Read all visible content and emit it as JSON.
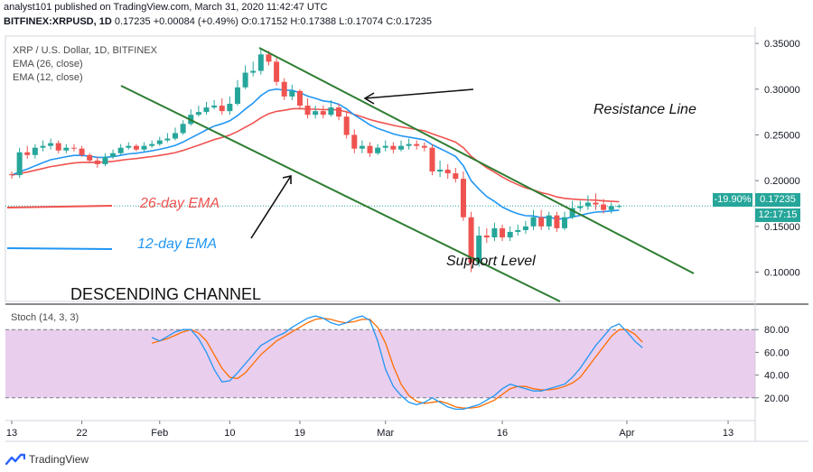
{
  "header": {
    "published": "analyst101 published on TradingView.com, March 31, 2020 11:42:47 UTC",
    "symbol": "BITFINEX:XRPUSD, 1D",
    "last": "0.17235",
    "change": "+0.00084 (+0.49%)",
    "o_label": "O:",
    "o": "0.17152",
    "h_label": "H:",
    "h": "0.17388",
    "l_label": "L:",
    "l": "0.17074",
    "c_label": "C:",
    "c": "0.17235"
  },
  "legend": {
    "title": "XRP / U.S. Dollar, 1D, BITFINEX",
    "ema26": "EMA (26, close)",
    "ema12": "EMA (12, close)"
  },
  "annotations": {
    "resistance": "Resistance Line",
    "support": "Support Level",
    "ema26": "26-day EMA",
    "ema12": "12-day EMA",
    "channel": "DESCENDING CHANNEL"
  },
  "price_axis": {
    "labels": [
      "0.35000",
      "0.30000",
      "0.25000",
      "0.20000",
      "0.15000",
      "0.10000"
    ],
    "current_price": "0.17235",
    "pct": "-19.90%",
    "countdown": "12:17:15"
  },
  "stoch_axis": {
    "title": "Stoch (14, 3, 3)",
    "labels": [
      "80.00",
      "60.00",
      "40.00",
      "20.00"
    ]
  },
  "time_axis": [
    "13",
    "22",
    "Feb",
    "10",
    "19",
    "Mar",
    "16",
    "Apr",
    "13"
  ],
  "footer": {
    "brand": "TradingView"
  },
  "colors": {
    "up": "#26a69a",
    "down": "#ef5350",
    "ema26": "#ef5350",
    "ema12": "#2196f3",
    "trendline": "#2e7d32",
    "stoch_k": "#2196f3",
    "stoch_d": "#ff6d00",
    "stoch_band": "#e1bee7",
    "price_tag": "#26a69a"
  },
  "chart_data": {
    "type": "candlestick",
    "title": "XRP / U.S. Dollar, 1D, BITFINEX",
    "dates": [
      "2020-01-13",
      "2020-01-14",
      "2020-01-15",
      "2020-01-16",
      "2020-01-17",
      "2020-01-18",
      "2020-01-19",
      "2020-01-20",
      "2020-01-21",
      "2020-01-22",
      "2020-01-23",
      "2020-01-24",
      "2020-01-25",
      "2020-01-26",
      "2020-01-27",
      "2020-01-28",
      "2020-01-29",
      "2020-01-30",
      "2020-01-31",
      "2020-02-01",
      "2020-02-02",
      "2020-02-03",
      "2020-02-04",
      "2020-02-05",
      "2020-02-06",
      "2020-02-07",
      "2020-02-08",
      "2020-02-09",
      "2020-02-10",
      "2020-02-11",
      "2020-02-12",
      "2020-02-13",
      "2020-02-14",
      "2020-02-15",
      "2020-02-16",
      "2020-02-17",
      "2020-02-18",
      "2020-02-19",
      "2020-02-20",
      "2020-02-21",
      "2020-02-22",
      "2020-02-23",
      "2020-02-24",
      "2020-02-25",
      "2020-02-26",
      "2020-02-27",
      "2020-02-28",
      "2020-02-29",
      "2020-03-01",
      "2020-03-02",
      "2020-03-03",
      "2020-03-04",
      "2020-03-05",
      "2020-03-06",
      "2020-03-07",
      "2020-03-08",
      "2020-03-09",
      "2020-03-10",
      "2020-03-11",
      "2020-03-12",
      "2020-03-13",
      "2020-03-14",
      "2020-03-15",
      "2020-03-16",
      "2020-03-17",
      "2020-03-18",
      "2020-03-19",
      "2020-03-20",
      "2020-03-21",
      "2020-03-22",
      "2020-03-23",
      "2020-03-24",
      "2020-03-25",
      "2020-03-26",
      "2020-03-27",
      "2020-03-28",
      "2020-03-29",
      "2020-03-30",
      "2020-03-31"
    ],
    "open": [
      0.207,
      0.206,
      0.231,
      0.228,
      0.236,
      0.238,
      0.241,
      0.233,
      0.236,
      0.235,
      0.228,
      0.222,
      0.218,
      0.226,
      0.23,
      0.236,
      0.238,
      0.234,
      0.238,
      0.24,
      0.244,
      0.246,
      0.252,
      0.262,
      0.272,
      0.275,
      0.28,
      0.282,
      0.276,
      0.284,
      0.302,
      0.318,
      0.32,
      0.338,
      0.33,
      0.308,
      0.292,
      0.298,
      0.282,
      0.272,
      0.276,
      0.272,
      0.28,
      0.27,
      0.25,
      0.235,
      0.238,
      0.23,
      0.236,
      0.238,
      0.234,
      0.238,
      0.24,
      0.238,
      0.236,
      0.21,
      0.212,
      0.208,
      0.202,
      0.16,
      0.11,
      0.14,
      0.138,
      0.148,
      0.138,
      0.144,
      0.146,
      0.15,
      0.16,
      0.15,
      0.162,
      0.148,
      0.16,
      0.17,
      0.172,
      0.176,
      0.174,
      0.168,
      0.172
    ],
    "close": [
      0.206,
      0.231,
      0.228,
      0.236,
      0.238,
      0.241,
      0.233,
      0.236,
      0.235,
      0.228,
      0.222,
      0.218,
      0.226,
      0.23,
      0.236,
      0.238,
      0.234,
      0.238,
      0.24,
      0.244,
      0.246,
      0.252,
      0.262,
      0.272,
      0.275,
      0.28,
      0.282,
      0.276,
      0.284,
      0.302,
      0.318,
      0.32,
      0.338,
      0.33,
      0.308,
      0.292,
      0.298,
      0.282,
      0.272,
      0.276,
      0.272,
      0.28,
      0.27,
      0.25,
      0.235,
      0.238,
      0.23,
      0.236,
      0.238,
      0.234,
      0.238,
      0.24,
      0.238,
      0.236,
      0.21,
      0.212,
      0.208,
      0.202,
      0.16,
      0.11,
      0.14,
      0.138,
      0.148,
      0.138,
      0.144,
      0.146,
      0.15,
      0.16,
      0.15,
      0.162,
      0.148,
      0.16,
      0.17,
      0.172,
      0.176,
      0.174,
      0.168,
      0.172,
      0.17235
    ],
    "high": [
      0.21,
      0.236,
      0.238,
      0.24,
      0.244,
      0.246,
      0.244,
      0.24,
      0.24,
      0.238,
      0.23,
      0.226,
      0.23,
      0.234,
      0.24,
      0.242,
      0.24,
      0.242,
      0.244,
      0.248,
      0.252,
      0.258,
      0.266,
      0.278,
      0.282,
      0.286,
      0.288,
      0.29,
      0.292,
      0.31,
      0.326,
      0.33,
      0.345,
      0.342,
      0.334,
      0.312,
      0.305,
      0.3,
      0.29,
      0.282,
      0.282,
      0.288,
      0.284,
      0.276,
      0.256,
      0.244,
      0.242,
      0.24,
      0.244,
      0.242,
      0.244,
      0.246,
      0.244,
      0.242,
      0.24,
      0.222,
      0.218,
      0.214,
      0.21,
      0.166,
      0.15,
      0.148,
      0.154,
      0.152,
      0.15,
      0.152,
      0.156,
      0.168,
      0.168,
      0.166,
      0.166,
      0.166,
      0.178,
      0.178,
      0.184,
      0.186,
      0.18,
      0.176,
      0.174
    ],
    "low": [
      0.202,
      0.203,
      0.224,
      0.224,
      0.232,
      0.234,
      0.23,
      0.23,
      0.232,
      0.226,
      0.22,
      0.214,
      0.216,
      0.224,
      0.228,
      0.234,
      0.232,
      0.232,
      0.236,
      0.238,
      0.242,
      0.244,
      0.25,
      0.26,
      0.27,
      0.272,
      0.278,
      0.272,
      0.272,
      0.282,
      0.3,
      0.314,
      0.316,
      0.326,
      0.304,
      0.288,
      0.288,
      0.278,
      0.268,
      0.268,
      0.268,
      0.27,
      0.266,
      0.246,
      0.23,
      0.23,
      0.226,
      0.228,
      0.232,
      0.23,
      0.232,
      0.234,
      0.234,
      0.232,
      0.206,
      0.204,
      0.202,
      0.198,
      0.156,
      0.1,
      0.106,
      0.132,
      0.134,
      0.134,
      0.134,
      0.14,
      0.142,
      0.146,
      0.146,
      0.146,
      0.144,
      0.146,
      0.158,
      0.166,
      0.168,
      0.168,
      0.164,
      0.164,
      0.17
    ],
    "stoch_k": [
      73,
      70,
      74,
      78,
      80,
      80,
      72,
      60,
      45,
      34,
      35,
      42,
      50,
      58,
      66,
      70,
      74,
      77,
      82,
      86,
      90,
      92,
      90,
      86,
      84,
      86,
      90,
      92,
      88,
      70,
      45,
      30,
      22,
      16,
      14,
      16,
      20,
      16,
      12,
      10,
      10,
      12,
      14,
      18,
      22,
      28,
      32,
      30,
      28,
      26,
      26,
      28,
      30,
      32,
      38,
      46,
      56,
      66,
      74,
      82,
      85,
      78,
      70,
      64
    ],
    "stoch_d": [
      68,
      70,
      72,
      75,
      78,
      80,
      77,
      70,
      58,
      46,
      38,
      37,
      42,
      50,
      58,
      64,
      70,
      74,
      78,
      82,
      86,
      89,
      90,
      89,
      87,
      86,
      87,
      89,
      89,
      82,
      68,
      48,
      32,
      22,
      17,
      15,
      16,
      17,
      15,
      12,
      11,
      11,
      12,
      15,
      18,
      23,
      28,
      30,
      30,
      28,
      27,
      27,
      28,
      30,
      33,
      38,
      47,
      56,
      65,
      74,
      80,
      80,
      76,
      69
    ],
    "y_range": [
      0.068,
      0.358
    ],
    "stoch_range": [
      0,
      100
    ],
    "stoch_levels": [
      80,
      20
    ],
    "trendlines": "descending channel from mid-Feb high and from Jan low",
    "legend_position": "top-left",
    "grid": false
  }
}
